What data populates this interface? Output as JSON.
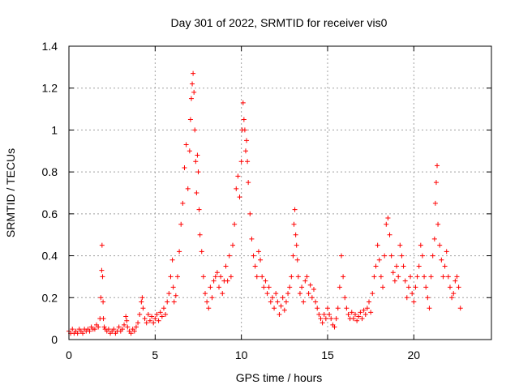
{
  "chart_data": {
    "type": "scatter",
    "title": "Day 301 of 2022, SRMTID for receiver vis0",
    "xlabel": "GPS time / hours",
    "ylabel": "SRMTID / TECUs",
    "xlim": [
      0,
      24.5
    ],
    "ylim": [
      0,
      1.4
    ],
    "x_ticks": [
      0,
      5,
      10,
      15,
      20
    ],
    "x_tick_labels": [
      "0",
      "5",
      "10",
      "15",
      "20"
    ],
    "y_ticks": [
      0,
      0.2,
      0.4,
      0.6,
      0.8,
      1.0,
      1.2,
      1.4
    ],
    "y_tick_labels": [
      "0",
      "0.2",
      "0.4",
      "0.6",
      "0.8",
      "1",
      "1.2",
      "1.4"
    ],
    "grid": true,
    "marker": "+",
    "color": "#ff0000",
    "series": [
      {
        "name": "vis0",
        "x": [
          0.0,
          0.1,
          0.2,
          0.3,
          0.4,
          0.5,
          0.6,
          0.7,
          0.8,
          0.9,
          1.0,
          1.1,
          1.2,
          1.3,
          1.4,
          1.5,
          1.6,
          1.7,
          1.8,
          1.85,
          1.9,
          1.92,
          1.95,
          1.98,
          2.0,
          2.05,
          2.1,
          2.2,
          2.3,
          2.4,
          2.5,
          2.6,
          2.7,
          2.8,
          2.9,
          3.0,
          3.1,
          3.2,
          3.3,
          3.35,
          3.4,
          3.5,
          3.6,
          3.7,
          3.8,
          3.9,
          4.0,
          4.1,
          4.2,
          4.25,
          4.3,
          4.4,
          4.5,
          4.6,
          4.7,
          4.8,
          4.9,
          5.0,
          5.1,
          5.2,
          5.3,
          5.4,
          5.5,
          5.6,
          5.7,
          5.8,
          5.9,
          6.0,
          6.05,
          6.1,
          6.2,
          6.3,
          6.4,
          6.5,
          6.6,
          6.7,
          6.8,
          6.9,
          7.0,
          7.05,
          7.1,
          7.15,
          7.2,
          7.25,
          7.3,
          7.35,
          7.4,
          7.45,
          7.5,
          7.55,
          7.6,
          7.7,
          7.8,
          7.9,
          8.0,
          8.1,
          8.2,
          8.3,
          8.4,
          8.5,
          8.6,
          8.7,
          8.8,
          8.9,
          9.0,
          9.1,
          9.2,
          9.3,
          9.4,
          9.5,
          9.6,
          9.7,
          9.8,
          9.9,
          10.0,
          10.05,
          10.1,
          10.15,
          10.2,
          10.25,
          10.3,
          10.35,
          10.4,
          10.5,
          10.6,
          10.7,
          10.8,
          10.9,
          11.0,
          11.1,
          11.2,
          11.3,
          11.4,
          11.5,
          11.6,
          11.7,
          11.8,
          11.9,
          12.0,
          12.1,
          12.2,
          12.3,
          12.4,
          12.5,
          12.6,
          12.7,
          12.8,
          12.9,
          13.0,
          13.05,
          13.1,
          13.15,
          13.2,
          13.25,
          13.3,
          13.4,
          13.5,
          13.6,
          13.7,
          13.8,
          13.9,
          14.0,
          14.1,
          14.2,
          14.3,
          14.4,
          14.5,
          14.6,
          14.7,
          14.8,
          14.9,
          15.0,
          15.1,
          15.2,
          15.3,
          15.4,
          15.5,
          15.6,
          15.7,
          15.8,
          15.9,
          16.0,
          16.1,
          16.2,
          16.3,
          16.4,
          16.5,
          16.6,
          16.7,
          16.8,
          16.9,
          17.0,
          17.1,
          17.2,
          17.3,
          17.4,
          17.5,
          17.6,
          17.7,
          17.8,
          17.9,
          18.0,
          18.1,
          18.2,
          18.3,
          18.4,
          18.5,
          18.6,
          18.7,
          18.8,
          18.9,
          19.0,
          19.1,
          19.2,
          19.3,
          19.4,
          19.5,
          19.6,
          19.7,
          19.8,
          19.9,
          20.0,
          20.1,
          20.2,
          20.3,
          20.4,
          20.5,
          20.6,
          20.7,
          20.8,
          20.9,
          21.0,
          21.1,
          21.2,
          21.25,
          21.3,
          21.35,
          21.4,
          21.5,
          21.6,
          21.7,
          21.8,
          21.9,
          22.0,
          22.1,
          22.2,
          22.3,
          22.4,
          22.5,
          22.6,
          22.7
        ],
        "y": [
          0.04,
          0.03,
          0.05,
          0.03,
          0.04,
          0.03,
          0.05,
          0.04,
          0.03,
          0.05,
          0.04,
          0.05,
          0.04,
          0.06,
          0.05,
          0.05,
          0.07,
          0.06,
          0.1,
          0.2,
          0.33,
          0.45,
          0.3,
          0.18,
          0.1,
          0.06,
          0.05,
          0.04,
          0.05,
          0.03,
          0.04,
          0.05,
          0.03,
          0.04,
          0.06,
          0.04,
          0.05,
          0.07,
          0.11,
          0.09,
          0.06,
          0.04,
          0.03,
          0.05,
          0.04,
          0.06,
          0.08,
          0.12,
          0.18,
          0.2,
          0.15,
          0.1,
          0.08,
          0.12,
          0.09,
          0.11,
          0.08,
          0.1,
          0.12,
          0.09,
          0.13,
          0.11,
          0.15,
          0.12,
          0.18,
          0.22,
          0.3,
          0.38,
          0.25,
          0.18,
          0.21,
          0.3,
          0.42,
          0.55,
          0.65,
          0.82,
          0.93,
          0.72,
          0.9,
          1.05,
          1.15,
          1.22,
          1.27,
          1.18,
          1.0,
          0.85,
          0.7,
          0.88,
          0.8,
          0.62,
          0.5,
          0.42,
          0.3,
          0.22,
          0.18,
          0.15,
          0.25,
          0.2,
          0.28,
          0.3,
          0.32,
          0.25,
          0.3,
          0.22,
          0.28,
          0.35,
          0.28,
          0.4,
          0.3,
          0.45,
          0.55,
          0.72,
          0.78,
          0.68,
          0.85,
          1.0,
          1.13,
          1.05,
          1.0,
          0.9,
          0.95,
          0.85,
          0.75,
          0.6,
          0.48,
          0.4,
          0.35,
          0.3,
          0.42,
          0.38,
          0.3,
          0.25,
          0.28,
          0.22,
          0.25,
          0.18,
          0.2,
          0.15,
          0.22,
          0.18,
          0.12,
          0.16,
          0.2,
          0.14,
          0.18,
          0.22,
          0.25,
          0.3,
          0.4,
          0.55,
          0.62,
          0.5,
          0.45,
          0.38,
          0.3,
          0.22,
          0.25,
          0.18,
          0.28,
          0.3,
          0.22,
          0.26,
          0.2,
          0.24,
          0.18,
          0.15,
          0.12,
          0.1,
          0.08,
          0.12,
          0.1,
          0.15,
          0.12,
          0.1,
          0.07,
          0.06,
          0.1,
          0.15,
          0.25,
          0.4,
          0.3,
          0.2,
          0.15,
          0.12,
          0.1,
          0.13,
          0.1,
          0.12,
          0.09,
          0.11,
          0.13,
          0.1,
          0.14,
          0.12,
          0.15,
          0.18,
          0.13,
          0.22,
          0.3,
          0.35,
          0.45,
          0.38,
          0.3,
          0.25,
          0.4,
          0.55,
          0.58,
          0.5,
          0.4,
          0.32,
          0.28,
          0.35,
          0.3,
          0.45,
          0.4,
          0.35,
          0.28,
          0.2,
          0.25,
          0.3,
          0.22,
          0.18,
          0.25,
          0.3,
          0.35,
          0.45,
          0.4,
          0.3,
          0.25,
          0.2,
          0.15,
          0.3,
          0.4,
          0.48,
          0.65,
          0.75,
          0.83,
          0.55,
          0.45,
          0.38,
          0.3,
          0.35,
          0.42,
          0.3,
          0.25,
          0.2,
          0.22,
          0.28,
          0.3,
          0.25,
          0.15
        ]
      }
    ]
  }
}
